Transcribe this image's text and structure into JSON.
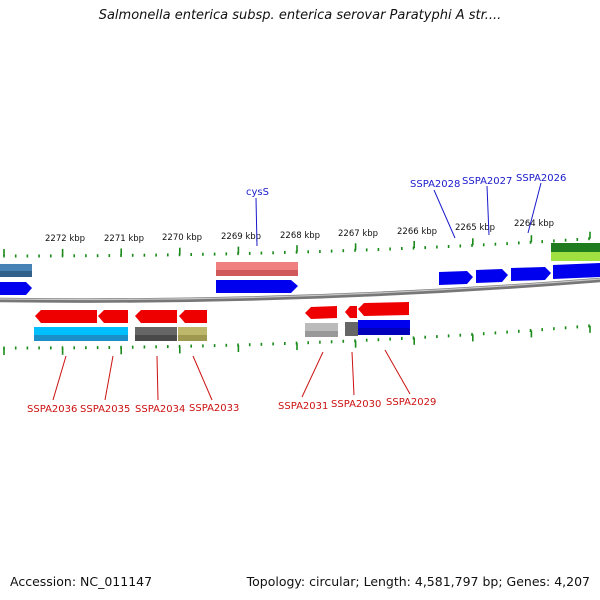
{
  "title": "Salmonella enterica subsp. enterica serovar Paratyphi A str....",
  "footer": {
    "accession": "Accession: NC_011147",
    "summary": "Topology: circular; Length: 4,581,797 bp; Genes: 4,207"
  },
  "colors": {
    "forward_label": "#1a1acc",
    "reverse_label": "#cc1111",
    "tick": "#1a8a1a",
    "backbone": "#888888"
  },
  "scale_labels": [
    {
      "label": "2272 kbp"
    },
    {
      "label": "2271 kbp"
    },
    {
      "label": "2270 kbp"
    },
    {
      "label": "2269 kbp"
    },
    {
      "label": "2268 kbp"
    },
    {
      "label": "2267 kbp"
    },
    {
      "label": "2266 kbp"
    },
    {
      "label": "2265 kbp"
    },
    {
      "label": "2264 kbp"
    }
  ],
  "forward_gene_labels": [
    {
      "label": "cysS"
    },
    {
      "label": "SSPA2028"
    },
    {
      "label": "SSPA2027"
    },
    {
      "label": "SSPA2026"
    }
  ],
  "reverse_gene_labels": [
    {
      "label": "SSPA2036"
    },
    {
      "label": "SSPA2035"
    },
    {
      "label": "SSPA2034"
    },
    {
      "label": "SSPA2033"
    },
    {
      "label": "SSPA2031"
    },
    {
      "label": "SSPA2030"
    },
    {
      "label": "SSPA2029"
    }
  ]
}
